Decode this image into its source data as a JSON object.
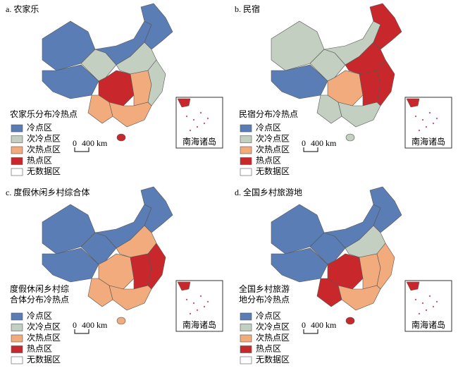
{
  "panels": [
    {
      "title": "a. 农家乐",
      "legend_title": [
        "农家乐分布冷热点"
      ],
      "legend": [
        "冷点区",
        "次冷点区",
        "次热点区",
        "热点区",
        "无数据区"
      ],
      "scale": [
        "0",
        "400 km"
      ],
      "inset_label": "南海诸岛"
    },
    {
      "title": "b. 民宿",
      "legend_title": [
        "民宿分布冷热点"
      ],
      "legend": [
        "冷点区",
        "次冷点区",
        "次热点区",
        "热点区",
        "无数据区"
      ],
      "scale": [
        "0",
        "400 km"
      ],
      "inset_label": "南海诸岛"
    },
    {
      "title": "c. 度假休闲乡村综合体",
      "legend_title": [
        "度假休闲乡村综",
        "合体分布冷热点"
      ],
      "legend": [
        "冷点区",
        "次冷点区",
        "次热点区",
        "热点区",
        "无数据区"
      ],
      "scale": [
        "0",
        "400 km"
      ],
      "inset_label": "南海诸岛"
    },
    {
      "title": "d. 全国乡村旅游地",
      "legend_title": [
        "全国乡村旅游",
        "地分布冷热点"
      ],
      "legend": [
        "冷点区",
        "次冷点区",
        "次热点区",
        "热点区",
        "无数据区"
      ],
      "scale": [
        "0",
        "400 km"
      ],
      "inset_label": "南海诸岛"
    }
  ]
}
